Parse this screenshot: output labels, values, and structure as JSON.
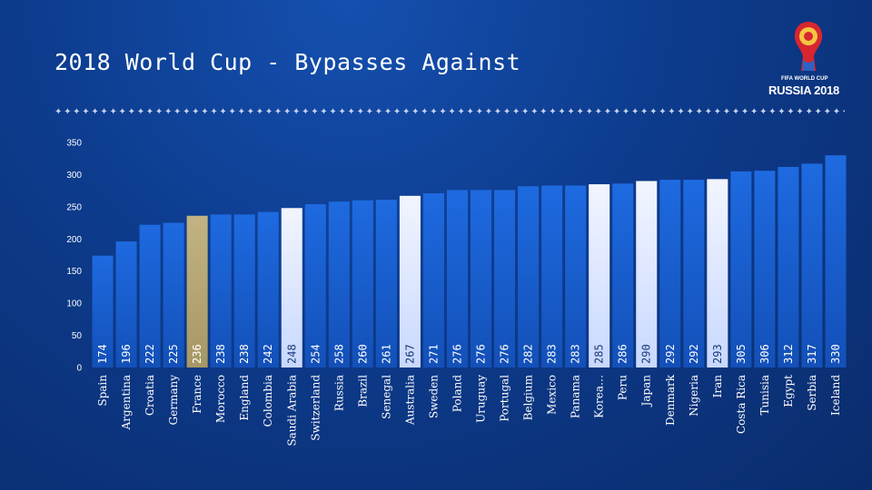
{
  "slide": {
    "title": "2018 World Cup - Bypasses Against",
    "logo_line1": "FIFA WORLD CUP",
    "logo_line2": "RUSSIA 2018",
    "divider": "✦✦✦✦✦✦✦✦✦✦✦✦✦✦✦✦✦✦✦✦✦✦✦✦✦✦✦✦✦✦✦✦✦✦✦✦✦✦✦✦✦✦✦✦✦✦✦✦✦✦✦✦✦✦✦✦✦✦✦✦✦✦✦✦✦✦✦✦✦✦✦✦✦✦✦✦✦✦✦✦✦✦✦✦✦✦✦✦✦✦✦✦✦✦✦✦✦✦✦✦✦✦✦✦✦✦✦✦✦✦✦✦"
  },
  "colors": {
    "bar_default": "#1a5fd0",
    "bar_highlight_gold": "#b8a878",
    "bar_highlight_light": "#e4ecff",
    "label_on_dark": "#ffffff",
    "label_on_light": "#1a3a7a"
  },
  "chart_data": {
    "type": "bar",
    "title": "2018 World Cup - Bypasses Against",
    "xlabel": "",
    "ylabel": "",
    "ylim": [
      0,
      350
    ],
    "yticks": [
      0,
      50,
      100,
      150,
      200,
      250,
      300,
      350
    ],
    "grid": false,
    "categories": [
      "Spain",
      "Argentina",
      "Croatia",
      "Germany",
      "France",
      "Morocco",
      "England",
      "Colombia",
      "Saudi Arabia",
      "Switzerland",
      "Russia",
      "Brazil",
      "Senegal",
      "Australia",
      "Sweden",
      "Poland",
      "Uruguay",
      "Portugal",
      "Belgium",
      "Mexico",
      "Panama",
      "Korea…",
      "Peru",
      "Japan",
      "Denmark",
      "Nigeria",
      "Iran",
      "Costa Rica",
      "Tunisia",
      "Egypt",
      "Serbia",
      "Iceland"
    ],
    "values": [
      174,
      196,
      222,
      225,
      236,
      238,
      238,
      242,
      248,
      254,
      258,
      260,
      261,
      267,
      271,
      276,
      276,
      276,
      282,
      283,
      283,
      285,
      286,
      290,
      292,
      292,
      293,
      305,
      306,
      312,
      317,
      330
    ],
    "highlight": {
      "gold": [
        "France"
      ],
      "light": [
        "Saudi Arabia",
        "Australia",
        "Korea…",
        "Japan",
        "Iran"
      ]
    }
  }
}
